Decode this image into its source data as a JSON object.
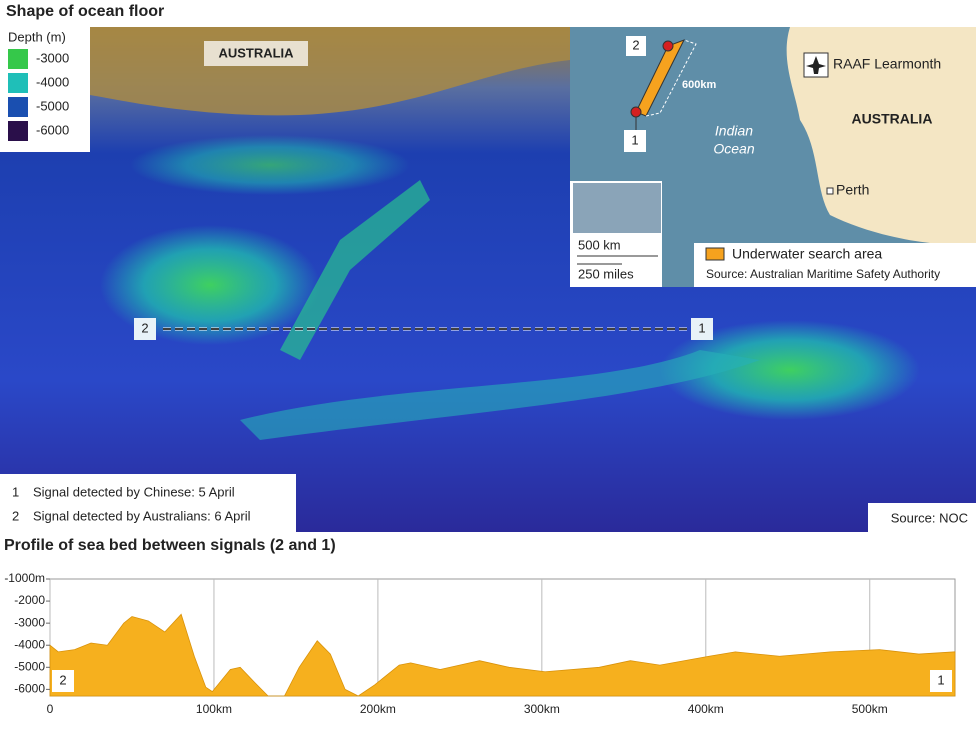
{
  "map": {
    "title": "Shape of ocean floor",
    "legend_title": "Depth (m)",
    "legend": [
      {
        "label": "-3000",
        "color": "#35c84a"
      },
      {
        "label": "-4000",
        "color": "#1fbfb8"
      },
      {
        "label": "-5000",
        "color": "#1a4fb0"
      },
      {
        "label": "-6000",
        "color": "#2a0f4a"
      }
    ],
    "land_label": "AUSTRALIA",
    "marker_left": "2",
    "marker_right": "1",
    "notes": [
      {
        "num": "1",
        "text": "Signal detected by Chinese: 5 April"
      },
      {
        "num": "2",
        "text": "Signal detected by Australians: 6 April"
      }
    ],
    "source": "Source: NOC"
  },
  "inset": {
    "point_top": "2",
    "point_bottom": "1",
    "distance": "600km",
    "ocean": [
      "Indian",
      "Ocean"
    ],
    "airbase": "RAAF Learmonth",
    "land": "AUSTRALIA",
    "city": "Perth",
    "scale_km": "500 km",
    "scale_miles": "250 miles",
    "legend": "Underwater search area",
    "source": "Source: Australian Maritime Safety Authority"
  },
  "chart_data": {
    "type": "area",
    "title": "Profile of sea bed between signals (2 and 1)",
    "color": "#f6b01e",
    "annotations": [
      "2",
      "1"
    ],
    "x": [
      0,
      5,
      15,
      25,
      35,
      45,
      50,
      60,
      70,
      80,
      88,
      95,
      99,
      110,
      116,
      125,
      133,
      143,
      152,
      163,
      171,
      180,
      188,
      198,
      213,
      220,
      238,
      262,
      280,
      302,
      335,
      354,
      372,
      402,
      418,
      445,
      476,
      506,
      530,
      552
    ],
    "values": [
      -4000,
      -4300,
      -4200,
      -3900,
      -4000,
      -3000,
      -2700,
      -2900,
      -3400,
      -2600,
      -4500,
      -5900,
      -6100,
      -5100,
      -5000,
      -5700,
      -6300,
      -6300,
      -5000,
      -3800,
      -4400,
      -6000,
      -6300,
      -5800,
      -4900,
      -4800,
      -5100,
      -4700,
      -5000,
      -5200,
      -5000,
      -4700,
      -4900,
      -4500,
      -4300,
      -4500,
      -4300,
      -4200,
      -4400,
      -4300
    ],
    "xlim": [
      0,
      552
    ],
    "ylim": [
      -6300,
      -1000
    ],
    "xticks": [
      0,
      {
        "value": 100,
        "label": "100km"
      },
      {
        "value": 200,
        "label": "200km"
      },
      {
        "value": 300,
        "label": "300km"
      },
      {
        "value": 400,
        "label": "400km"
      },
      {
        "value": 500,
        "label": "500km"
      }
    ],
    "yticks": [
      {
        "value": -1000,
        "label": "-1000m"
      },
      -2000,
      -3000,
      -4000,
      -5000,
      -6000
    ],
    "grid": true
  }
}
